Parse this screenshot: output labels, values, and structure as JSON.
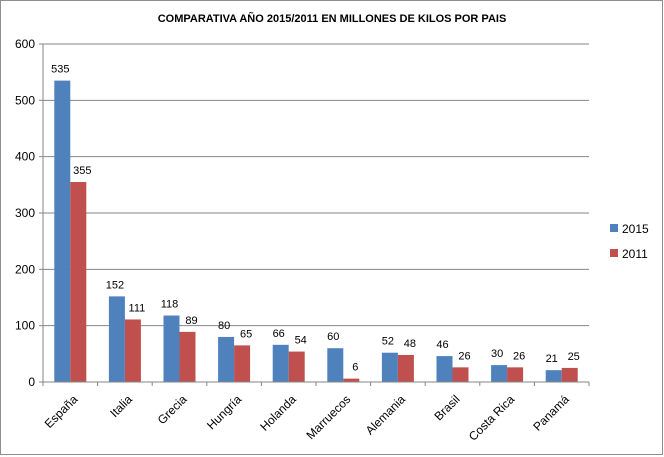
{
  "chart_data": {
    "type": "bar",
    "title": "COMPARATIVA AÑO 2015/2011 EN MILLONES DE KILOS POR PAIS",
    "categories": [
      "España",
      "Italia",
      "Grecia",
      "Hungría",
      "Holanda",
      "Marruecos",
      "Alemania",
      "Brasil",
      "Costa Rica",
      "Panamá"
    ],
    "series": [
      {
        "name": "2015",
        "color": "#4f81bd",
        "values": [
          535,
          152,
          118,
          80,
          66,
          60,
          52,
          46,
          30,
          21
        ]
      },
      {
        "name": "2011",
        "color": "#c0504d",
        "values": [
          355,
          111,
          89,
          65,
          54,
          6,
          48,
          26,
          26,
          25
        ]
      }
    ],
    "ylim": [
      0,
      600
    ],
    "yticks": [
      0,
      100,
      200,
      300,
      400,
      500,
      600
    ],
    "grid": true,
    "legend_position": "right"
  }
}
